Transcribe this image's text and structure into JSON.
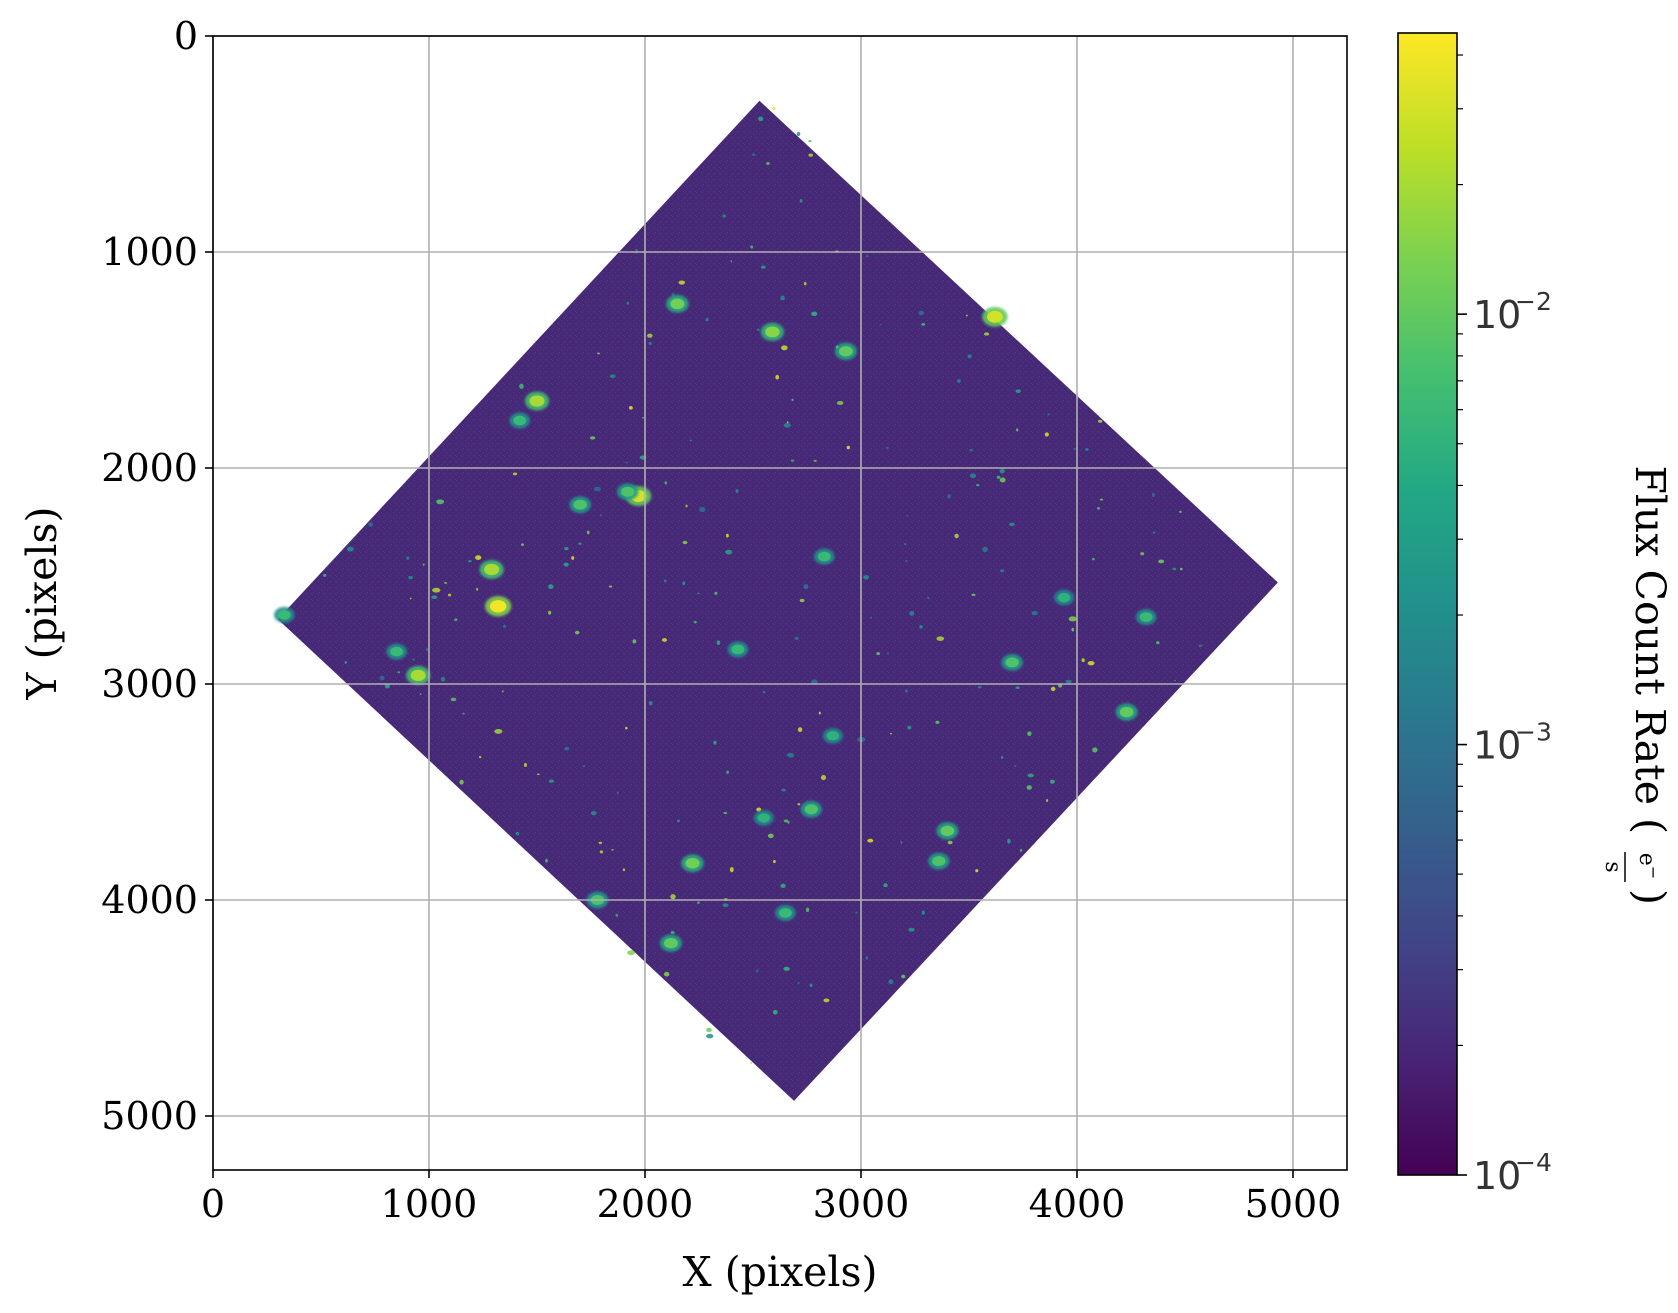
{
  "chart_data": {
    "type": "heatmap",
    "title": "",
    "xlabel": "X (pixels)",
    "ylabel": "Y (pixels)",
    "xlim": [
      0,
      5250
    ],
    "ylim": [
      5250,
      0
    ],
    "y_inverted": true,
    "grid": true,
    "x_ticks": [
      {
        "value": 0,
        "label": "0"
      },
      {
        "value": 1000,
        "label": "1000"
      },
      {
        "value": 2000,
        "label": "2000"
      },
      {
        "value": 3000,
        "label": "3000"
      },
      {
        "value": 4000,
        "label": "4000"
      },
      {
        "value": 5000,
        "label": "5000"
      }
    ],
    "y_ticks": [
      {
        "value": 0,
        "label": "0"
      },
      {
        "value": 1000,
        "label": "1000"
      },
      {
        "value": 2000,
        "label": "2000"
      },
      {
        "value": 3000,
        "label": "3000"
      },
      {
        "value": 4000,
        "label": "4000"
      },
      {
        "value": 5000,
        "label": "5000"
      }
    ],
    "image_footprint": {
      "shape": "rotated square (diamond)",
      "corners": [
        [
          2530,
          300
        ],
        [
          4930,
          2530
        ],
        [
          2690,
          4930
        ],
        [
          300,
          2700
        ]
      ],
      "background_value": 0.0002
    },
    "bright_sources": [
      {
        "x": 2590,
        "y": 1370,
        "value": 0.015
      },
      {
        "x": 3620,
        "y": 1300,
        "value": 0.03
      },
      {
        "x": 1970,
        "y": 2130,
        "value": 0.03
      },
      {
        "x": 1320,
        "y": 2640,
        "value": 0.04
      },
      {
        "x": 1290,
        "y": 2470,
        "value": 0.02
      },
      {
        "x": 950,
        "y": 2960,
        "value": 0.02
      },
      {
        "x": 1500,
        "y": 1690,
        "value": 0.02
      },
      {
        "x": 2220,
        "y": 3830,
        "value": 0.012
      },
      {
        "x": 2930,
        "y": 1460,
        "value": 0.01
      },
      {
        "x": 2150,
        "y": 1240,
        "value": 0.012
      },
      {
        "x": 3400,
        "y": 3680,
        "value": 0.01
      },
      {
        "x": 4230,
        "y": 3130,
        "value": 0.01
      },
      {
        "x": 1700,
        "y": 2170,
        "value": 0.008
      },
      {
        "x": 2120,
        "y": 4200,
        "value": 0.01
      },
      {
        "x": 3700,
        "y": 2900,
        "value": 0.008
      },
      {
        "x": 3360,
        "y": 3820,
        "value": 0.008
      },
      {
        "x": 2770,
        "y": 3580,
        "value": 0.008
      },
      {
        "x": 1780,
        "y": 4000,
        "value": 0.008
      },
      {
        "x": 850,
        "y": 2850,
        "value": 0.006
      },
      {
        "x": 330,
        "y": 2680,
        "value": 0.006
      },
      {
        "x": 2830,
        "y": 2410,
        "value": 0.006
      },
      {
        "x": 4320,
        "y": 2690,
        "value": 0.006
      },
      {
        "x": 2430,
        "y": 2840,
        "value": 0.006
      },
      {
        "x": 1420,
        "y": 1780,
        "value": 0.006
      },
      {
        "x": 2650,
        "y": 4060,
        "value": 0.006
      },
      {
        "x": 3940,
        "y": 2600,
        "value": 0.005
      },
      {
        "x": 2550,
        "y": 3620,
        "value": 0.005
      },
      {
        "x": 2870,
        "y": 3240,
        "value": 0.005
      },
      {
        "x": 1920,
        "y": 2110,
        "value": 0.008
      }
    ],
    "colorbar": {
      "label_main": "Flux Count Rate (",
      "label_num": "e",
      "label_sup": "−",
      "label_den": "s",
      "label_close": ")",
      "scale": "log",
      "colormap": "viridis",
      "vmin": 0.0001,
      "vmax": 0.045,
      "ticks": [
        {
          "value": 0.0001,
          "base": "10",
          "exp": "−4"
        },
        {
          "value": 0.001,
          "base": "10",
          "exp": "−3"
        },
        {
          "value": 0.01,
          "base": "10",
          "exp": "−2"
        }
      ]
    }
  },
  "colors": {
    "grid": "#b0b0b0",
    "axes": "#000000"
  }
}
